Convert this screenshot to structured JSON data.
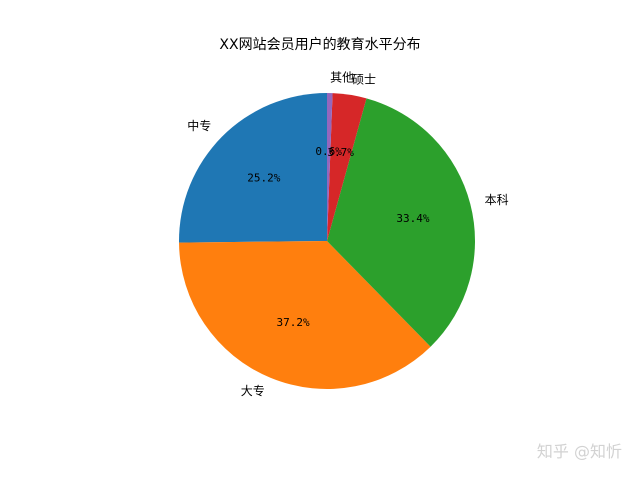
{
  "chart_data": {
    "type": "pie",
    "title": "XX网站会员用户的教育水平分布",
    "slices": [
      {
        "label": "中专",
        "value": 25.2,
        "pct_text": "25.2%",
        "color": "#1f77b4"
      },
      {
        "label": "大专",
        "value": 37.2,
        "pct_text": "37.2%",
        "color": "#ff7f0e"
      },
      {
        "label": "本科",
        "value": 33.4,
        "pct_text": "33.4%",
        "color": "#2ca02c"
      },
      {
        "label": "硕士",
        "value": 3.7,
        "pct_text": "3.7%",
        "color": "#d62728"
      },
      {
        "label": "其他",
        "value": 0.6,
        "pct_text": "0.6%",
        "color": "#9467bd"
      }
    ],
    "start_angle": 90,
    "direction": "counterclockwise",
    "legend": "none"
  },
  "watermark": {
    "text": "知乎 @知忻"
  }
}
